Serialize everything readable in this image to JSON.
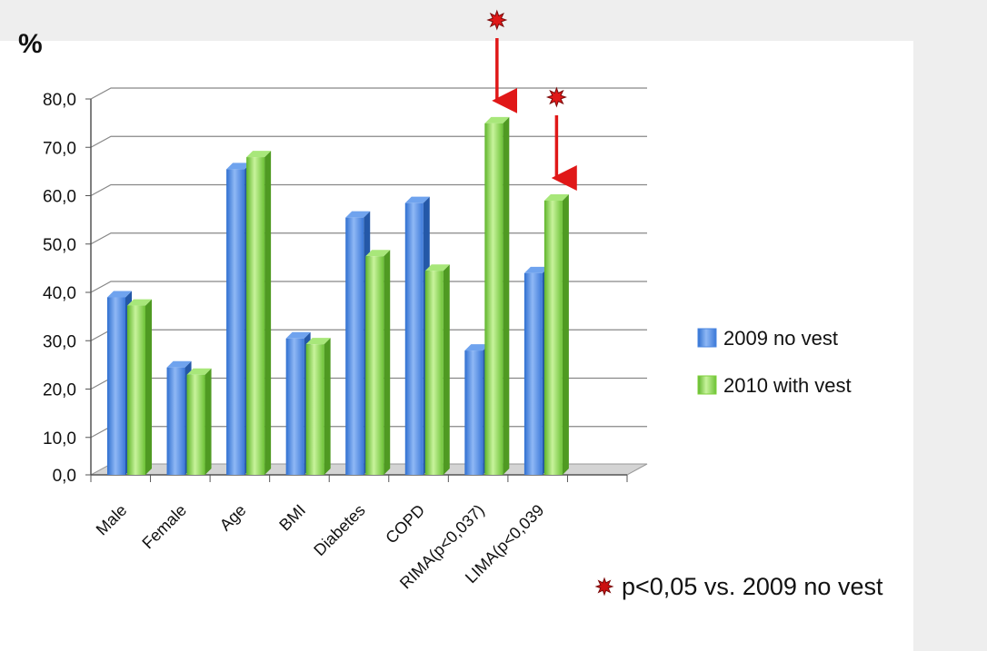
{
  "chart_data": {
    "type": "bar",
    "ylabel": "%",
    "ylim": [
      0,
      80
    ],
    "yticks": [
      "0,0",
      "10,0",
      "20,0",
      "30,0",
      "40,0",
      "50,0",
      "60,0",
      "70,0",
      "80,0"
    ],
    "categories": [
      "Male",
      "Female",
      "Age",
      "BMI",
      "Diabetes",
      "COPD",
      "RIMA(p<0,037)",
      "LIMA(p<0,039"
    ],
    "series": [
      {
        "name": "2009 no vest",
        "color": "#4a86e0",
        "values": [
          37.5,
          23.0,
          64.0,
          29.0,
          54.0,
          57.0,
          26.5,
          42.5
        ]
      },
      {
        "name": "2010 with vest",
        "color": "#7fd13b",
        "values": [
          35.8,
          21.5,
          66.5,
          27.8,
          46.0,
          43.0,
          73.5,
          57.5
        ]
      }
    ],
    "grid": true,
    "legend_position": "right",
    "significance_marks": [
      {
        "category": "RIMA(p<0,037)",
        "series": "2010 with vest",
        "marker": "red-star",
        "arrow": "red-arrow-down"
      },
      {
        "category": "LIMA(p<0,039",
        "series": "2010 with vest",
        "marker": "red-star",
        "arrow": "red-arrow-down"
      }
    ],
    "footnote": {
      "text": "p<0,05 vs. 2009 no vest",
      "marker": "red-star",
      "marker_color": "#cc1111"
    }
  }
}
